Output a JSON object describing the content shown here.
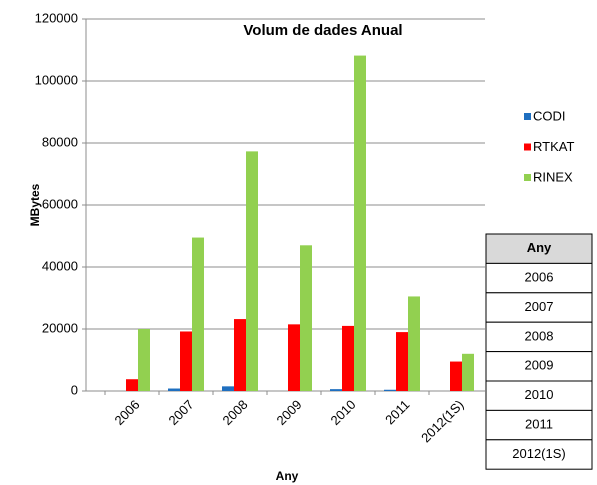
{
  "chart_data": {
    "type": "bar",
    "title": "Volum de dades Anual",
    "xlabel": "Any",
    "ylabel": "MBytes",
    "categories": [
      "2006",
      "2007",
      "2008",
      "2009",
      "2010",
      "2011",
      "2012(1S)"
    ],
    "series": [
      {
        "name": "CODI",
        "color": "#1f6fc0",
        "values": [
          0,
          800,
          1500,
          0,
          600,
          400,
          0
        ]
      },
      {
        "name": "RTKAT",
        "color": "#ff0000",
        "values": [
          3800,
          19200,
          23200,
          21500,
          21000,
          19000,
          9500
        ]
      },
      {
        "name": "RINEX",
        "color": "#92d050",
        "values": [
          20000,
          49500,
          77300,
          47000,
          108200,
          30500,
          12000
        ]
      }
    ],
    "ylim": [
      0,
      120000
    ],
    "yticks": [
      0,
      20000,
      40000,
      60000,
      80000,
      100000,
      120000
    ],
    "grid": true,
    "legend": "right",
    "table": {
      "header": "Any",
      "rows": [
        "2006",
        "2007",
        "2008",
        "2009",
        "2010",
        "2011",
        "2012(1S)"
      ]
    }
  }
}
